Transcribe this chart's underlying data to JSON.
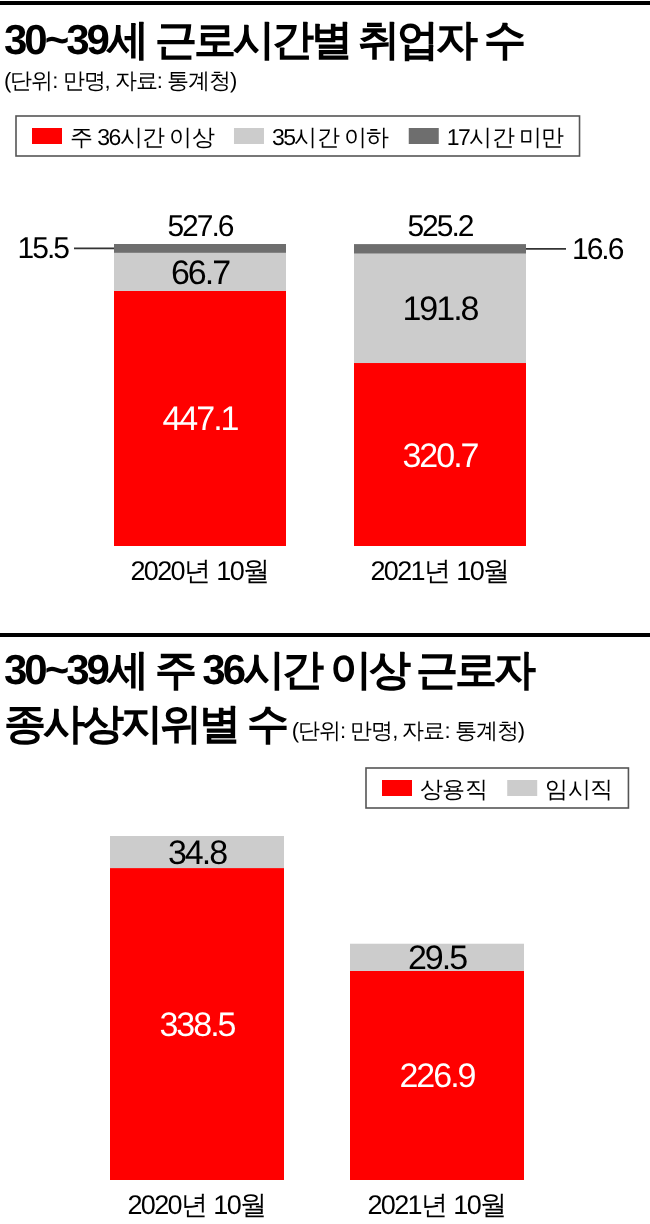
{
  "chart_data": [
    {
      "type": "bar",
      "title": "30~39세 근로시간별 취업자 수",
      "subtitle": "(단위: 만명, 자료: 통계청)",
      "categories": [
        "2020년 10월",
        "2021년 10월"
      ],
      "stacked": true,
      "data_labels": true,
      "legend": "top",
      "annotations": [
        "527.6",
        "525.2"
      ],
      "series": [
        {
          "name": "주 36시간 이상",
          "color": "#ff0000",
          "values": [
            447.1,
            320.7
          ]
        },
        {
          "name": "35시간 이하",
          "color": "#cccccc",
          "values": [
            66.7,
            191.8
          ]
        },
        {
          "name": "17시간 미만",
          "color": "#6e6e6e",
          "values": [
            15.5,
            16.6
          ]
        }
      ]
    },
    {
      "type": "bar",
      "title": "30~39세 주 36시간 이상 근로자\n종사상지위별 수",
      "subtitle": "(단위: 만명, 자료: 통계청)",
      "categories": [
        "2020년 10월",
        "2021년 10월"
      ],
      "stacked": true,
      "data_labels": true,
      "legend": "top right",
      "series": [
        {
          "name": "상용직",
          "color": "#ff0000",
          "values": [
            338.5,
            226.9
          ]
        },
        {
          "name": "임시직",
          "color": "#cccccc",
          "values": [
            34.8,
            29.5
          ]
        }
      ]
    }
  ]
}
